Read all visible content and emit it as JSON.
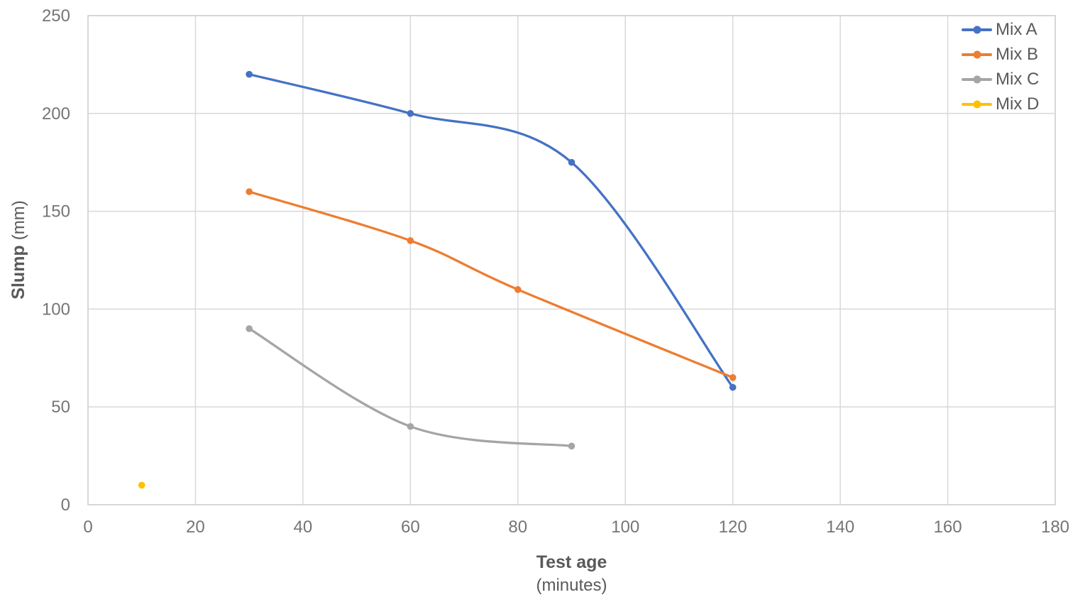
{
  "chart_data": {
    "type": "line",
    "line_style": "smooth",
    "xlabel": "Test age",
    "xlabel_unit": "(minutes)",
    "ylabel": "Slump",
    "ylabel_unit": "(mm)",
    "xlim": [
      0,
      180
    ],
    "ylim": [
      0,
      250
    ],
    "xticks": [
      0,
      20,
      40,
      60,
      80,
      100,
      120,
      140,
      160,
      180
    ],
    "yticks": [
      0,
      50,
      100,
      150,
      200,
      250
    ],
    "grid": true,
    "legend_position": "top-right-inside",
    "series": [
      {
        "name": "Mix A",
        "color": "#4472C4",
        "points": [
          [
            30,
            220
          ],
          [
            60,
            200
          ],
          [
            90,
            175
          ],
          [
            120,
            60
          ]
        ]
      },
      {
        "name": "Mix B",
        "color": "#ED7D31",
        "points": [
          [
            30,
            160
          ],
          [
            60,
            135
          ],
          [
            80,
            110
          ],
          [
            120,
            65
          ]
        ]
      },
      {
        "name": "Mix C",
        "color": "#A5A5A5",
        "points": [
          [
            30,
            90
          ],
          [
            60,
            40
          ],
          [
            90,
            30
          ]
        ]
      },
      {
        "name": "Mix D",
        "color": "#FFC000",
        "points": [
          [
            10,
            10
          ]
        ]
      }
    ],
    "colors": {
      "grid": "#D9D9D9",
      "plot_border": "#D0D0D0",
      "tick_label": "#757575",
      "axis_title": "#595959",
      "background": "#FFFFFF"
    }
  }
}
